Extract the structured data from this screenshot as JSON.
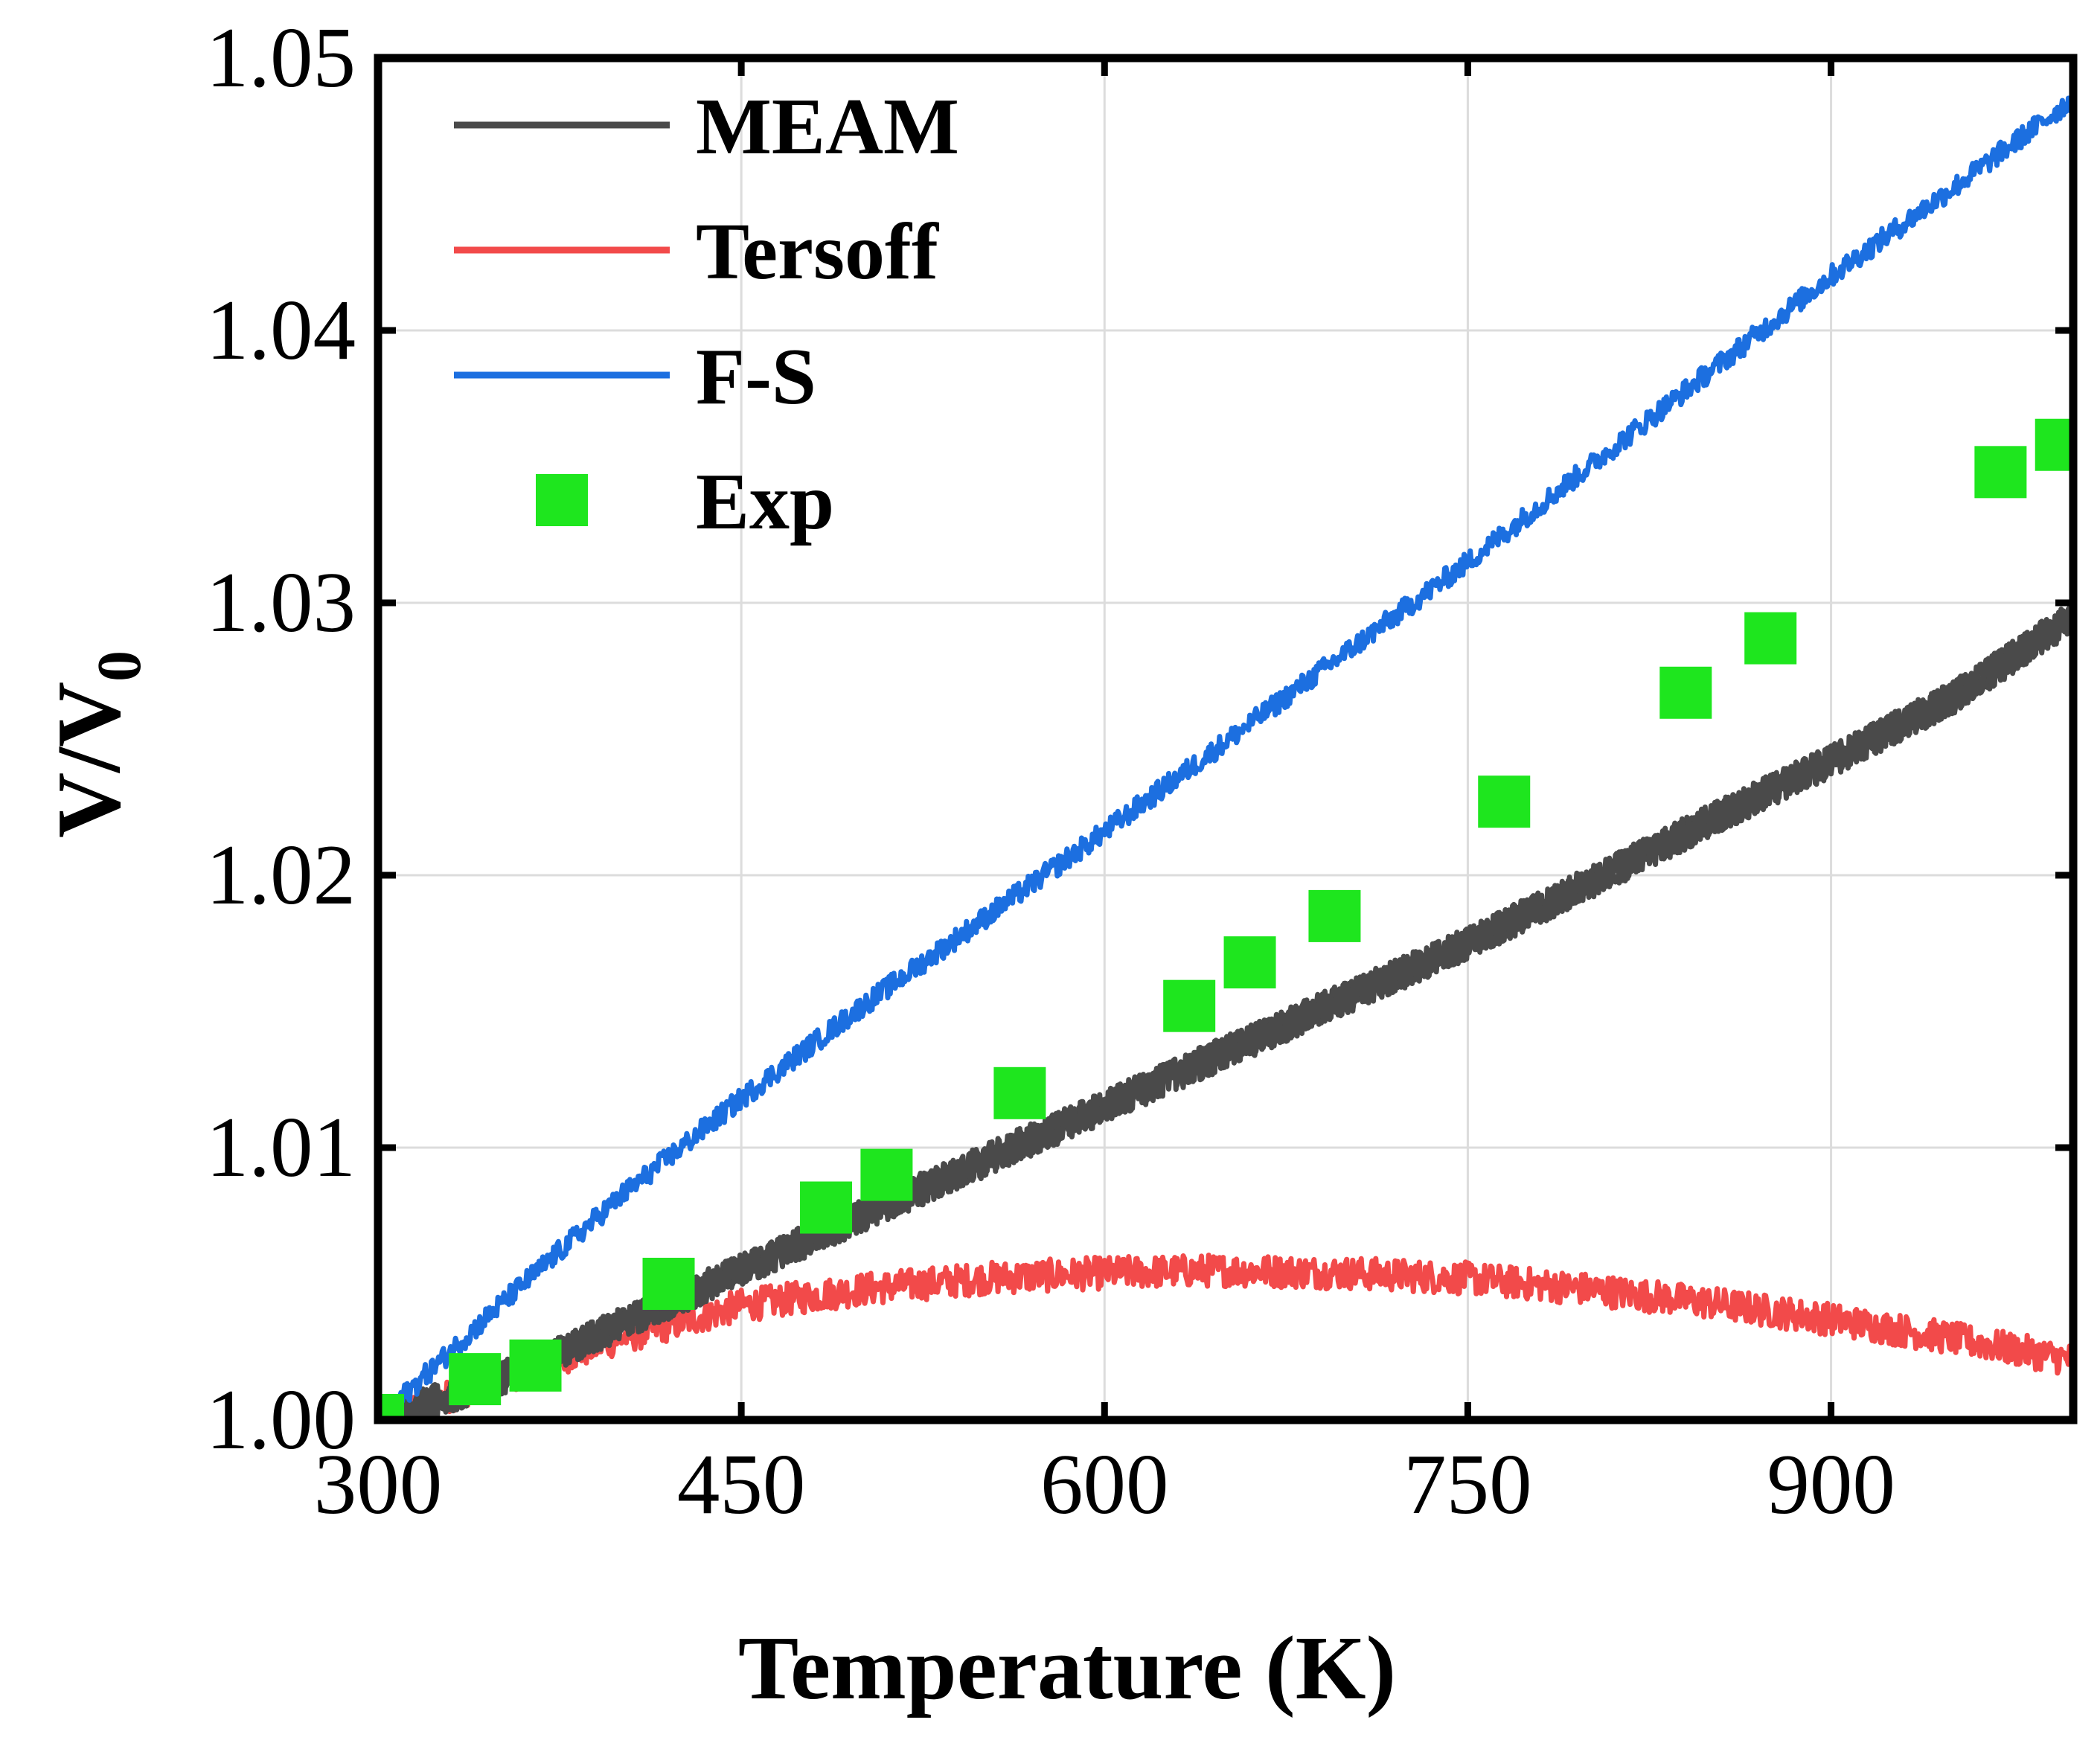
{
  "chart_data": {
    "type": "line",
    "xlabel": "Temperature (K)",
    "ylabel_main": "V/V",
    "ylabel_sub": "0",
    "xlim": [
      300,
      1000
    ],
    "ylim": [
      1.0,
      1.05
    ],
    "xticks": [
      300,
      450,
      600,
      750,
      900
    ],
    "xtick_labels": [
      "300",
      "450",
      "600",
      "750",
      "900"
    ],
    "yticks": [
      1.0,
      1.01,
      1.02,
      1.03,
      1.04,
      1.05
    ],
    "ytick_labels": [
      "1.00",
      "1.01",
      "1.02",
      "1.03",
      "1.04",
      "1.05"
    ],
    "grid": true,
    "legend_position": "top-left",
    "series": [
      {
        "name": "MEAM",
        "kind": "line",
        "color": "#4a4a4a",
        "x": [
          300,
          350,
          400,
          450,
          500,
          550,
          600,
          650,
          700,
          750,
          800,
          850,
          900,
          950,
          1000
        ],
        "y": [
          1.0,
          1.0015,
          1.0035,
          1.0055,
          1.0075,
          1.0095,
          1.0115,
          1.0135,
          1.0155,
          1.0175,
          1.0197,
          1.022,
          1.0242,
          1.0265,
          1.0295
        ],
        "noise": 0.0006
      },
      {
        "name": "Tersoff",
        "kind": "line",
        "color": "#f24a4a",
        "x": [
          300,
          350,
          400,
          450,
          500,
          550,
          600,
          650,
          700,
          750,
          800,
          850,
          900,
          950,
          1000
        ],
        "y": [
          1.0,
          1.0015,
          1.003,
          1.0042,
          1.0048,
          1.0052,
          1.0054,
          1.0055,
          1.0054,
          1.0052,
          1.0048,
          1.0043,
          1.0037,
          1.003,
          1.0022
        ],
        "noise": 0.0006
      },
      {
        "name": "F-S",
        "kind": "line",
        "color": "#1c6fe0",
        "x": [
          300,
          350,
          400,
          450,
          500,
          550,
          600,
          650,
          700,
          750,
          800,
          850,
          900,
          950,
          1000
        ],
        "y": [
          1.0,
          1.0042,
          1.0082,
          1.0118,
          1.0152,
          1.0184,
          1.0216,
          1.0249,
          1.0282,
          1.0315,
          1.035,
          1.0385,
          1.042,
          1.0452,
          1.0485
        ],
        "noise": 0.0004
      },
      {
        "name": "Exp",
        "kind": "scatter",
        "marker": "square",
        "color": "#1ee61e",
        "x": [
          300,
          340,
          365,
          420,
          485,
          510,
          565,
          635,
          660,
          695,
          765,
          840,
          875,
          970,
          995
        ],
        "y": [
          1.0,
          1.0015,
          1.002,
          1.005,
          1.0078,
          1.009,
          1.012,
          1.0152,
          1.0168,
          1.0185,
          1.0227,
          1.0267,
          1.0287,
          1.0348,
          1.0358
        ]
      }
    ]
  }
}
